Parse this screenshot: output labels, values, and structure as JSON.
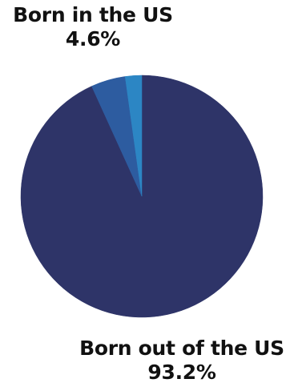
{
  "chart_data": {
    "type": "pie",
    "slices": [
      {
        "label": "Born out of the US",
        "value": 93.2,
        "display": "93.2%",
        "color": "#2e3468"
      },
      {
        "label": "Born in the US",
        "value": 4.6,
        "display": "4.6%",
        "color": "#2d5ca0"
      },
      {
        "label": "",
        "value": 2.2,
        "display": "",
        "color": "#2c86c4"
      }
    ],
    "start_angle_deg": 0,
    "direction": "clockwise"
  }
}
